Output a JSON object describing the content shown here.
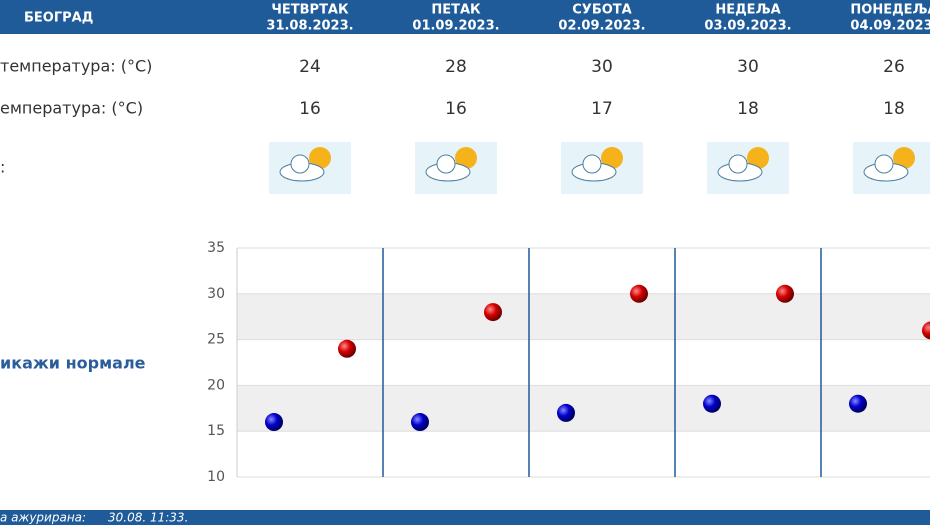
{
  "header": {
    "city": "БЕОГРАД"
  },
  "table": {
    "columns": [
      {
        "day": "ЧЕТВРТАК",
        "date": "31.08.2023."
      },
      {
        "day": "ПЕТАК",
        "date": "01.09.2023."
      },
      {
        "day": "СУБОТА",
        "date": "02.09.2023."
      },
      {
        "day": "НЕДЕЉА",
        "date": "03.09.2023."
      },
      {
        "day": "ПОНЕДЕЉА",
        "date": "04.09.2023."
      }
    ],
    "rows": [
      {
        "label": "температура: (°C)",
        "values": [
          24,
          28,
          30,
          30,
          26
        ]
      },
      {
        "label": "емпература: (°C)",
        "values": [
          16,
          16,
          17,
          18,
          18
        ]
      }
    ],
    "icon_row_label": ":"
  },
  "chart": {
    "ylim": [
      10,
      35
    ],
    "yticks": [
      10,
      15,
      20,
      25,
      30,
      35
    ]
  },
  "toggle": "икажи нормале",
  "footer": {
    "label": "а ажурирана:",
    "time": "30.08. 11:33."
  }
}
